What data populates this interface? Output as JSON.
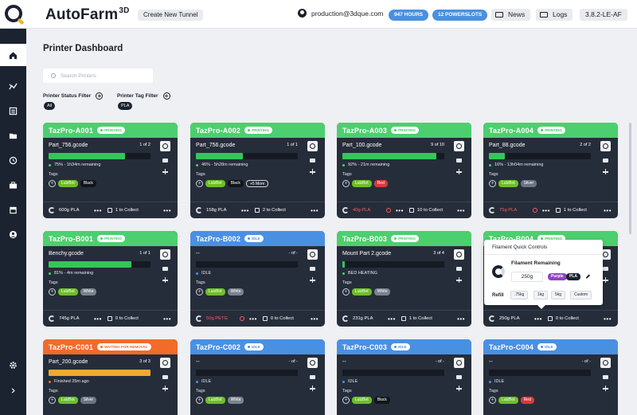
{
  "header": {
    "brand": "AutoFarm",
    "brand_sup": "3D",
    "new_tunnel": "Create New Tunnel",
    "account": "production@3dque.com",
    "hours": "947 HOURS",
    "powerslots": "12 POWERSLOTS",
    "news": "News",
    "logs": "Logs",
    "version": "3.8.2-LE-AF"
  },
  "sidebar": {
    "items": [
      "home-icon",
      "analytics-icon",
      "list-icon",
      "folder-icon",
      "history-icon",
      "toolbox-icon",
      "store-icon",
      "account-icon",
      "settings-icon",
      "expand-icon"
    ]
  },
  "main": {
    "title": "Printer Dashboard",
    "search_placeholder": "Search Printers",
    "status_filter_label": "Printer Status Filter",
    "status_filter_value": "All",
    "tag_filter_label": "Printer Tag Filter",
    "tag_filter_value": "PLA"
  },
  "colors": {
    "printing": "#4ccf6f",
    "idle": "#4a90e2",
    "waiting": "#f26b2b",
    "progress_green": "#34c65a",
    "progress_orange": "#f0a830"
  },
  "printers": [
    {
      "name": "TazPro-A001",
      "status": "PRINTING",
      "file": "Part_756.gcode",
      "jobs": "1 of 2",
      "progress": 0.75,
      "progress_text": "75% - 1h34m remaining",
      "tags": [
        "LulzBot",
        "Black"
      ],
      "filament": "600g PLA",
      "collect": "1 to Collect"
    },
    {
      "name": "TazPro-A002",
      "status": "PRINTING",
      "file": "Part_756.gcode",
      "jobs": "1 of 1",
      "progress": 0.46,
      "progress_text": "46% - 5h28m remaining",
      "tags": [
        "LulzBot",
        "Black",
        "+5 More"
      ],
      "filament": "158g PLA",
      "collect": "2 to Collect"
    },
    {
      "name": "TazPro-A003",
      "status": "PRINTING",
      "file": "Part_100.gcode",
      "jobs": "9 of 10",
      "progress": 0.92,
      "progress_text": "92% - 21m remaining",
      "tags": [
        "LulzBot",
        "Red"
      ],
      "filament": "40g PLA",
      "filament_warn": true,
      "collect": "10 to Collect"
    },
    {
      "name": "TazPro-A004",
      "status": "PRINTING",
      "file": "Part_88.gcode",
      "jobs": "2 of 2",
      "progress": 0.16,
      "progress_text": "16% - 13h04m remaining",
      "tags": [
        "LulzBot",
        "Silver"
      ],
      "filament": "75g PLA",
      "filament_warn": true,
      "collect": "1 to Collect"
    },
    {
      "name": "TazPro-B001",
      "status": "PRINTING",
      "file": "Benchy.gcode",
      "jobs": "1 of 1",
      "progress": 0.81,
      "progress_text": "81% - 4m remaining",
      "tags": [
        "LulzBot",
        "White"
      ],
      "filament": "745g PLA",
      "collect": "0 to Collect"
    },
    {
      "name": "TazPro-B002",
      "status": "IDLE",
      "file": "--",
      "jobs": "- of -",
      "progress": 0,
      "progress_text": "IDLE",
      "tags": [
        "LulzBot",
        "White"
      ],
      "filament": "50g PETG",
      "filament_warn": true,
      "collect": "0 to Collect"
    },
    {
      "name": "TazPro-B003",
      "status": "PRINTING",
      "file": "Mount Part 2.gcode",
      "jobs": "3 of 4",
      "progress": 0.02,
      "progress_text": "BED HEATING",
      "tags": [
        "LulzBot",
        "White"
      ],
      "filament": "231g PLA",
      "collect": "1 to Collect"
    },
    {
      "name": "TazPro-B004",
      "status": "PRINTING",
      "file": "",
      "jobs": "",
      "progress": 0,
      "progress_text": "",
      "tags": [],
      "filament": "250g PLA",
      "collect": "0 to Collect"
    },
    {
      "name": "TazPro-C001",
      "status": "WAITING FOR REMOVAL",
      "file": "Part_200.gcode",
      "jobs": "3 of 3",
      "progress": 1,
      "progress_text": "Finished 25m ago",
      "tags": [
        "LulzBot",
        "Silver"
      ],
      "filament": "",
      "collect": ""
    },
    {
      "name": "TazPro-C002",
      "status": "IDLE",
      "file": "--",
      "jobs": "- of -",
      "progress": 0,
      "progress_text": "IDLE",
      "tags": [
        "LulzBot",
        "White"
      ],
      "filament": "",
      "collect": ""
    },
    {
      "name": "TazPro-C003",
      "status": "IDLE",
      "file": "--",
      "jobs": "- of -",
      "progress": 0,
      "progress_text": "IDLE",
      "tags": [
        "LulzBot",
        "Black"
      ],
      "filament": "",
      "collect": ""
    },
    {
      "name": "TazPro-C004",
      "status": "IDLE",
      "file": "--",
      "jobs": "- of -",
      "progress": 0,
      "progress_text": "IDLE",
      "tags": [
        "LulzBot",
        "Red"
      ],
      "filament": "",
      "collect": ""
    }
  ],
  "tags_label": "Tags",
  "popup": {
    "title": "Filament Quick Controls",
    "remaining_label": "Filament Remaining",
    "amount": "250g",
    "color_chip": "Purple",
    "material_chip": "PLA",
    "refill_label": "Refill",
    "refill_options": [
      ".75kg",
      "1kg",
      "5kg",
      "Custom"
    ]
  }
}
